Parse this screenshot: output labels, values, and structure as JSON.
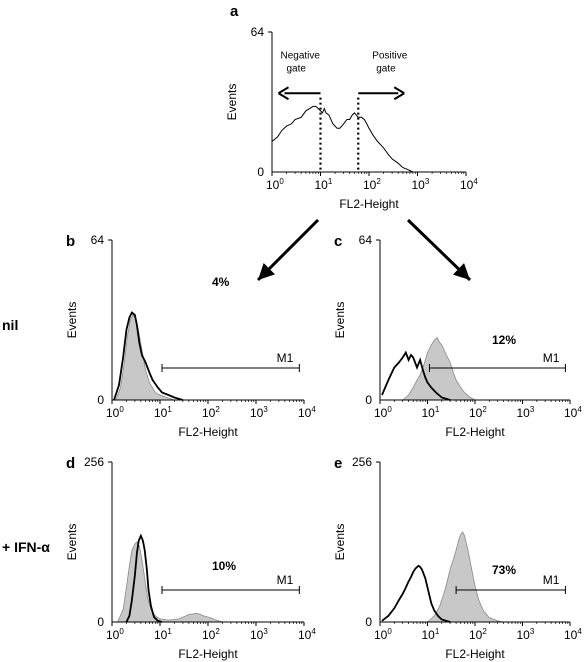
{
  "row_labels": [
    "nil",
    "+ IFN-α"
  ],
  "shared_arrows": [
    "a→b",
    "a→c"
  ],
  "chart_data": [
    {
      "panel": "a",
      "type": "area",
      "xlabel": "FL2-Height",
      "ylabel": "Events",
      "xscale": "log",
      "xlim": [
        1,
        10000
      ],
      "ylim": [
        0,
        64
      ],
      "xticks": [
        "10^0",
        "10^1",
        "10^2",
        "10^3",
        "10^4"
      ],
      "yticks": [
        "0",
        "64"
      ],
      "gates": [
        {
          "label": "Negative gate",
          "position": 10,
          "direction": "left"
        },
        {
          "label": "Positive gate",
          "position": 60,
          "direction": "right"
        }
      ],
      "series": [
        {
          "style": "outline",
          "points": [
            [
              1,
              14
            ],
            [
              1.3,
              16
            ],
            [
              1.6,
              19
            ],
            [
              2,
              21
            ],
            [
              2.5,
              22
            ],
            [
              3,
              24
            ],
            [
              4,
              25
            ],
            [
              5,
              28
            ],
            [
              6,
              29
            ],
            [
              7,
              30
            ],
            [
              8,
              30
            ],
            [
              9,
              29
            ],
            [
              10,
              28
            ],
            [
              11,
              27
            ],
            [
              12,
              29
            ],
            [
              13,
              27
            ],
            [
              15,
              26
            ],
            [
              18,
              22
            ],
            [
              22,
              20
            ],
            [
              25,
              20
            ],
            [
              30,
              22
            ],
            [
              35,
              24
            ],
            [
              40,
              24
            ],
            [
              45,
              26
            ],
            [
              50,
              27
            ],
            [
              60,
              25
            ],
            [
              70,
              25
            ],
            [
              80,
              24
            ],
            [
              90,
              22
            ],
            [
              100,
              20
            ],
            [
              120,
              17
            ],
            [
              150,
              14
            ],
            [
              200,
              11
            ],
            [
              250,
              8
            ],
            [
              300,
              6
            ],
            [
              400,
              4
            ],
            [
              500,
              2
            ],
            [
              650,
              1
            ],
            [
              800,
              0
            ]
          ]
        }
      ]
    },
    {
      "panel": "b",
      "type": "area",
      "xlabel": "FL2-Height",
      "ylabel": "Events",
      "xscale": "log",
      "xlim": [
        1,
        10000
      ],
      "ylim": [
        0,
        64
      ],
      "xticks": [
        "10^0",
        "10^1",
        "10^2",
        "10^3",
        "10^4"
      ],
      "yticks": [
        "0",
        "64"
      ],
      "marker": {
        "label": "M1",
        "range": [
          11,
          8000
        ]
      },
      "annotation": "4%",
      "series": [
        {
          "style": "filled",
          "points": [
            [
              1.2,
              0
            ],
            [
              1.5,
              5
            ],
            [
              1.8,
              15
            ],
            [
              2.1,
              26
            ],
            [
              2.4,
              32
            ],
            [
              2.7,
              34
            ],
            [
              3,
              33
            ],
            [
              3.3,
              31
            ],
            [
              3.7,
              26
            ],
            [
              4.2,
              20
            ],
            [
              5,
              12
            ],
            [
              6,
              7
            ],
            [
              8,
              3
            ],
            [
              10,
              2
            ],
            [
              14,
              1
            ],
            [
              20,
              0
            ]
          ]
        },
        {
          "style": "outline",
          "points": [
            [
              1.1,
              0
            ],
            [
              1.4,
              6
            ],
            [
              1.7,
              17
            ],
            [
              2,
              28
            ],
            [
              2.3,
              33
            ],
            [
              2.6,
              35
            ],
            [
              3,
              34
            ],
            [
              3.3,
              30
            ],
            [
              3.7,
              23
            ],
            [
              4.2,
              18
            ],
            [
              5,
              15
            ],
            [
              6,
              11
            ],
            [
              7,
              8
            ],
            [
              9,
              5
            ],
            [
              11,
              3
            ],
            [
              15,
              2
            ],
            [
              20,
              1
            ],
            [
              30,
              0
            ]
          ]
        }
      ]
    },
    {
      "panel": "c",
      "type": "area",
      "xlabel": "FL2-Height",
      "ylabel": "Events",
      "xscale": "log",
      "xlim": [
        1,
        10000
      ],
      "ylim": [
        0,
        64
      ],
      "xticks": [
        "10^0",
        "10^1",
        "10^2",
        "10^3",
        "10^4"
      ],
      "yticks": [
        "0",
        "64"
      ],
      "marker": {
        "label": "M1",
        "range": [
          11,
          8000
        ]
      },
      "annotation": "12%",
      "series": [
        {
          "style": "filled",
          "points": [
            [
              3,
              0
            ],
            [
              4,
              2
            ],
            [
              5,
              5
            ],
            [
              6,
              8
            ],
            [
              7,
              10
            ],
            [
              8,
              13
            ],
            [
              9,
              16
            ],
            [
              10,
              19
            ],
            [
              12,
              22
            ],
            [
              14,
              24
            ],
            [
              16,
              25
            ],
            [
              18,
              23
            ],
            [
              20,
              22
            ],
            [
              25,
              18
            ],
            [
              30,
              15
            ],
            [
              35,
              11
            ],
            [
              40,
              8
            ],
            [
              50,
              5
            ],
            [
              60,
              3
            ],
            [
              80,
              1
            ],
            [
              100,
              0
            ]
          ]
        },
        {
          "style": "outline",
          "points": [
            [
              1.1,
              2
            ],
            [
              1.5,
              8
            ],
            [
              2,
              13
            ],
            [
              2.5,
              15
            ],
            [
              3,
              17
            ],
            [
              3.5,
              19
            ],
            [
              4,
              16
            ],
            [
              4.5,
              18
            ],
            [
              5,
              17
            ],
            [
              6,
              13
            ],
            [
              7,
              16
            ],
            [
              8,
              12
            ],
            [
              9,
              9
            ],
            [
              10,
              7
            ],
            [
              12,
              5
            ],
            [
              15,
              3
            ],
            [
              20,
              1
            ],
            [
              30,
              0
            ]
          ]
        }
      ]
    },
    {
      "panel": "d",
      "type": "area",
      "xlabel": "FL2-Height",
      "ylabel": "Events",
      "xscale": "log",
      "xlim": [
        1,
        10000
      ],
      "ylim": [
        0,
        256
      ],
      "xticks": [
        "10^0",
        "10^1",
        "10^2",
        "10^3",
        "10^4"
      ],
      "yticks": [
        "0",
        "256"
      ],
      "marker": {
        "label": "M1",
        "range": [
          11,
          8000
        ]
      },
      "annotation": "10%",
      "series": [
        {
          "style": "filled",
          "points": [
            [
              1.3,
              0
            ],
            [
              1.7,
              20
            ],
            [
              2,
              55
            ],
            [
              2.3,
              90
            ],
            [
              2.6,
              115
            ],
            [
              3,
              125
            ],
            [
              3.3,
              128
            ],
            [
              3.7,
              122
            ],
            [
              4.2,
              100
            ],
            [
              4.8,
              70
            ],
            [
              5.5,
              40
            ],
            [
              6.5,
              20
            ],
            [
              8,
              10
            ],
            [
              10,
              5
            ],
            [
              15,
              3
            ],
            [
              25,
              5
            ],
            [
              40,
              12
            ],
            [
              60,
              14
            ],
            [
              80,
              10
            ],
            [
              110,
              7
            ],
            [
              150,
              3
            ],
            [
              200,
              0
            ]
          ]
        },
        {
          "style": "outline",
          "points": [
            [
              2,
              0
            ],
            [
              2.3,
              10
            ],
            [
              2.6,
              35
            ],
            [
              3,
              75
            ],
            [
              3.3,
              110
            ],
            [
              3.6,
              130
            ],
            [
              4,
              138
            ],
            [
              4.4,
              130
            ],
            [
              4.8,
              115
            ],
            [
              5.3,
              85
            ],
            [
              5.8,
              50
            ],
            [
              6.5,
              25
            ],
            [
              7.5,
              8
            ],
            [
              9,
              2
            ],
            [
              11,
              0
            ]
          ]
        }
      ]
    },
    {
      "panel": "e",
      "type": "area",
      "xlabel": "FL2-Height",
      "ylabel": "Events",
      "xscale": "log",
      "xlim": [
        1,
        10000
      ],
      "ylim": [
        0,
        256
      ],
      "xticks": [
        "10^0",
        "10^1",
        "10^2",
        "10^3",
        "10^4"
      ],
      "yticks": [
        "0",
        "256"
      ],
      "marker": {
        "label": "M1",
        "range": [
          40,
          8000
        ]
      },
      "annotation": "73%",
      "series": [
        {
          "style": "filled",
          "points": [
            [
              10,
              0
            ],
            [
              14,
              10
            ],
            [
              18,
              25
            ],
            [
              22,
              45
            ],
            [
              26,
              65
            ],
            [
              30,
              85
            ],
            [
              35,
              100
            ],
            [
              40,
              115
            ],
            [
              45,
              130
            ],
            [
              50,
              140
            ],
            [
              55,
              144
            ],
            [
              60,
              138
            ],
            [
              70,
              118
            ],
            [
              80,
              95
            ],
            [
              90,
              75
            ],
            [
              100,
              58
            ],
            [
              120,
              35
            ],
            [
              150,
              18
            ],
            [
              200,
              7
            ],
            [
              300,
              2
            ],
            [
              400,
              0
            ]
          ]
        },
        {
          "style": "outline",
          "points": [
            [
              1.1,
              2
            ],
            [
              1.5,
              10
            ],
            [
              2,
              22
            ],
            [
              2.5,
              35
            ],
            [
              3,
              45
            ],
            [
              3.5,
              55
            ],
            [
              4,
              65
            ],
            [
              4.5,
              72
            ],
            [
              5,
              80
            ],
            [
              5.5,
              85
            ],
            [
              6,
              88
            ],
            [
              6.5,
              90
            ],
            [
              7,
              88
            ],
            [
              7.5,
              85
            ],
            [
              8,
              80
            ],
            [
              9,
              70
            ],
            [
              10,
              55
            ],
            [
              11,
              42
            ],
            [
              12,
              30
            ],
            [
              14,
              18
            ],
            [
              17,
              9
            ],
            [
              20,
              4
            ],
            [
              30,
              0
            ]
          ]
        }
      ]
    }
  ]
}
